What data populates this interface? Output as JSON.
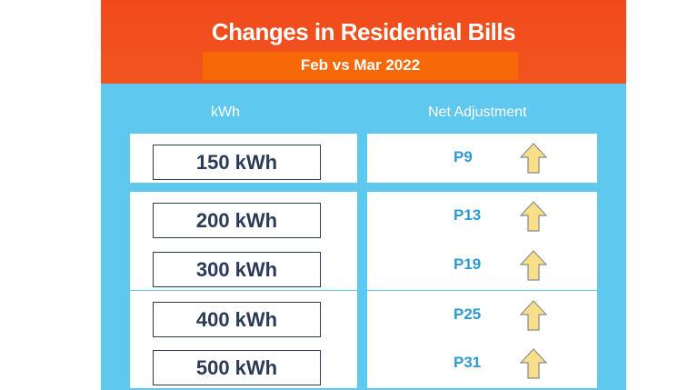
{
  "header": {
    "title": "Changes in Residential Bills",
    "subtitle": "Feb vs Mar 2022"
  },
  "columns": {
    "kwh": "kWh",
    "adjustment": "Net Adjustment"
  },
  "rows": [
    {
      "kwh": "150 kWh",
      "adjustment": "P9",
      "direction": "up-arrow-icon"
    },
    {
      "kwh": "200 kWh",
      "adjustment": "P13",
      "direction": "up-arrow-icon"
    },
    {
      "kwh": "300 kWh",
      "adjustment": "P19",
      "direction": "up-arrow-icon"
    },
    {
      "kwh": "400 kWh",
      "adjustment": "P25",
      "direction": "up-arrow-icon"
    },
    {
      "kwh": "500 kWh",
      "adjustment": "P31",
      "direction": "up-arrow-icon"
    }
  ],
  "colors": {
    "header": "#f04a1c",
    "subtitle_bar": "#f76808",
    "panel": "#5ec8ee",
    "value_text": "#2e9ad3",
    "arrow_fill": "#f9df8a"
  }
}
